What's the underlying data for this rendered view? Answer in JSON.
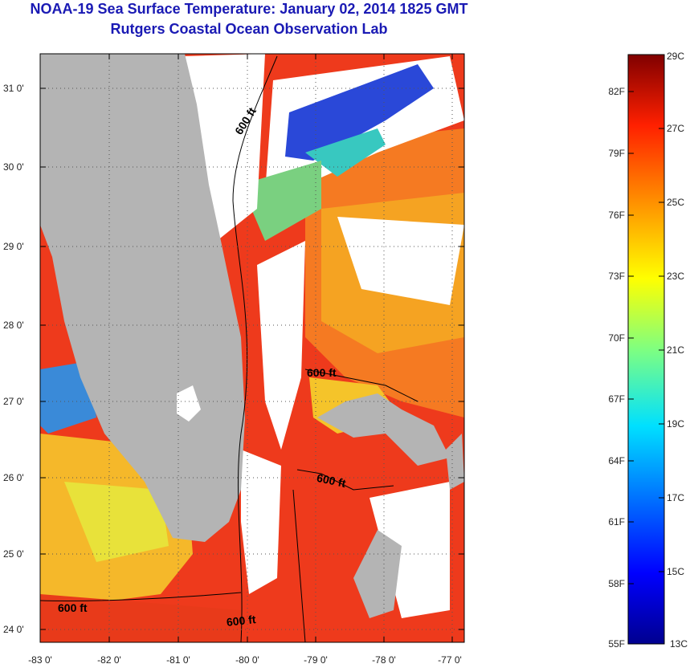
{
  "title": {
    "line1": "NOAA-19 Sea Surface Temperature:  January 02, 2014 1825 GMT",
    "line2": "Rutgers Coastal Ocean Observation Lab"
  },
  "map": {
    "lat_ticks": [
      "31 0'",
      "30 0'",
      "29 0'",
      "28 0'",
      "27 0'",
      "26 0'",
      "25 0'",
      "24 0'"
    ],
    "lon_ticks": [
      "-83 0'",
      "-82 0'",
      "-81 0'",
      "-80 0'",
      "-79 0'",
      "-78 0'",
      "-77 0'"
    ],
    "contour_label": "600 ft",
    "contour_labels": [
      "600 ft",
      "600 ft",
      "600 ft",
      "600 ft",
      "600 ft"
    ]
  },
  "colorbar": {
    "celsius": [
      "29C",
      "27C",
      "25C",
      "23C",
      "21C",
      "19C",
      "17C",
      "15C",
      "13C"
    ],
    "fahrenheit": [
      "82F",
      "79F",
      "76F",
      "73F",
      "70F",
      "67F",
      "64F",
      "61F",
      "58F",
      "55F"
    ]
  },
  "colors": {
    "title": "#1a1ab4",
    "land": "#b4b4b4",
    "cloud": "#ffffff",
    "warm_water": "#e8301a",
    "mid_water": "#f5a020"
  }
}
